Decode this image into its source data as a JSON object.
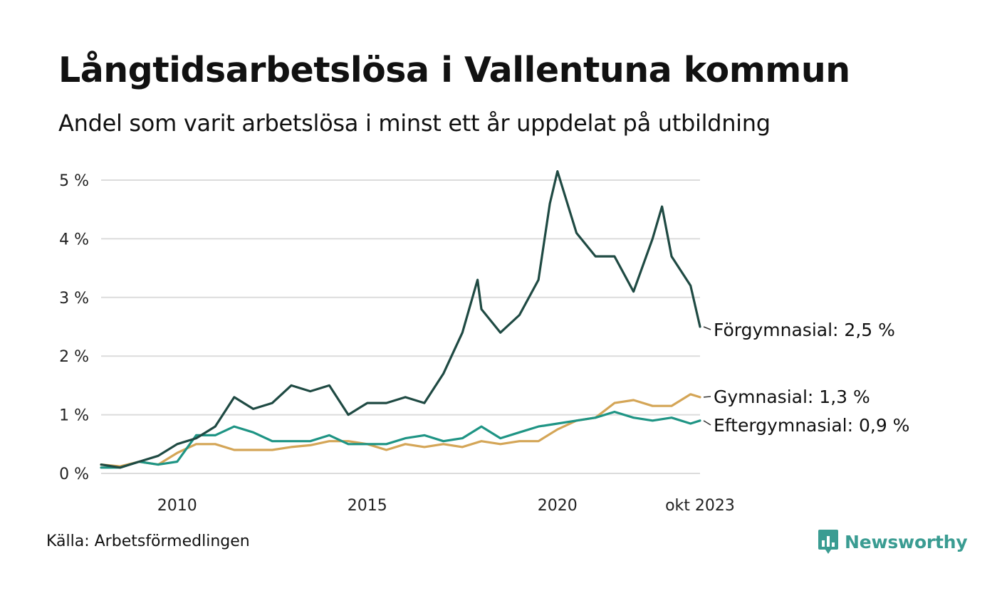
{
  "header": {
    "title": "Långtidsarbetslösa i Vallentuna kommun",
    "subtitle": "Andel som varit arbetslösa i minst ett år uppdelat på utbildning"
  },
  "footer": {
    "source": "Källa: Arbetsförmedlingen",
    "brand": "Newsworthy",
    "brand_icon": "newsworthy-logo-icon"
  },
  "chart_data": {
    "type": "line",
    "title": "Långtidsarbetslösa i Vallentuna kommun",
    "subtitle": "Andel som varit arbetslösa i minst ett år uppdelat på utbildning",
    "x_range": [
      2008.0,
      2023.75
    ],
    "ylim": [
      0,
      5
    ],
    "grid": true,
    "y_ticks": [
      0,
      1,
      2,
      3,
      4,
      5
    ],
    "y_tick_labels": [
      "0 %",
      "1 %",
      "2 %",
      "3 %",
      "4 %",
      "5 %"
    ],
    "x_ticks": [
      2010,
      2015,
      2020,
      2023.75
    ],
    "x_tick_labels": [
      "2010",
      "2015",
      "2020",
      "okt 2023"
    ],
    "series": [
      {
        "name": "Förgymnasial",
        "label": "Förgymnasial: 2,5 %",
        "color": "#1f4a43",
        "x": [
          2008.0,
          2008.5,
          2009.0,
          2009.5,
          2010.0,
          2010.5,
          2011.0,
          2011.5,
          2012.0,
          2012.5,
          2013.0,
          2013.5,
          2014.0,
          2014.5,
          2015.0,
          2015.5,
          2016.0,
          2016.5,
          2017.0,
          2017.5,
          2017.9,
          2018.0,
          2018.5,
          2019.0,
          2019.5,
          2019.8,
          2020.0,
          2020.5,
          2021.0,
          2021.5,
          2022.0,
          2022.5,
          2022.75,
          2023.0,
          2023.5,
          2023.75
        ],
        "values": [
          0.15,
          0.1,
          0.2,
          0.3,
          0.5,
          0.6,
          0.8,
          1.3,
          1.1,
          1.2,
          1.5,
          1.4,
          1.5,
          1.0,
          1.2,
          1.2,
          1.3,
          1.2,
          1.7,
          2.4,
          3.3,
          2.8,
          2.4,
          2.7,
          3.3,
          4.6,
          5.15,
          4.1,
          3.7,
          3.7,
          3.1,
          4.0,
          4.55,
          3.7,
          3.2,
          2.5
        ]
      },
      {
        "name": "Gymnasial",
        "label": "Gymnasial: 1,3 %",
        "color": "#d4a556",
        "x": [
          2008.0,
          2008.5,
          2009.0,
          2009.5,
          2010.0,
          2010.5,
          2011.0,
          2011.5,
          2012.0,
          2012.5,
          2013.0,
          2013.5,
          2014.0,
          2014.5,
          2015.0,
          2015.5,
          2016.0,
          2016.5,
          2017.0,
          2017.5,
          2018.0,
          2018.5,
          2019.0,
          2019.5,
          2020.0,
          2020.5,
          2021.0,
          2021.5,
          2022.0,
          2022.5,
          2023.0,
          2023.5,
          2023.75
        ],
        "values": [
          0.15,
          0.12,
          0.2,
          0.15,
          0.35,
          0.5,
          0.5,
          0.4,
          0.4,
          0.4,
          0.45,
          0.48,
          0.55,
          0.55,
          0.5,
          0.4,
          0.5,
          0.45,
          0.5,
          0.45,
          0.55,
          0.5,
          0.55,
          0.55,
          0.75,
          0.9,
          0.95,
          1.2,
          1.25,
          1.15,
          1.15,
          1.35,
          1.3
        ]
      },
      {
        "name": "Eftergymnasial",
        "label": "Eftergymnasial: 0,9 %",
        "color": "#1e9484",
        "x": [
          2008.0,
          2008.5,
          2009.0,
          2009.5,
          2010.0,
          2010.5,
          2011.0,
          2011.5,
          2012.0,
          2012.5,
          2013.0,
          2013.5,
          2014.0,
          2014.5,
          2015.0,
          2015.5,
          2016.0,
          2016.5,
          2017.0,
          2017.5,
          2018.0,
          2018.5,
          2019.0,
          2019.5,
          2020.0,
          2020.5,
          2021.0,
          2021.5,
          2022.0,
          2022.5,
          2023.0,
          2023.5,
          2023.75
        ],
        "values": [
          0.1,
          0.1,
          0.2,
          0.15,
          0.2,
          0.65,
          0.65,
          0.8,
          0.7,
          0.55,
          0.55,
          0.55,
          0.65,
          0.5,
          0.5,
          0.5,
          0.6,
          0.65,
          0.55,
          0.6,
          0.8,
          0.6,
          0.7,
          0.8,
          0.85,
          0.9,
          0.95,
          1.05,
          0.95,
          0.9,
          0.95,
          0.85,
          0.9
        ]
      }
    ]
  }
}
